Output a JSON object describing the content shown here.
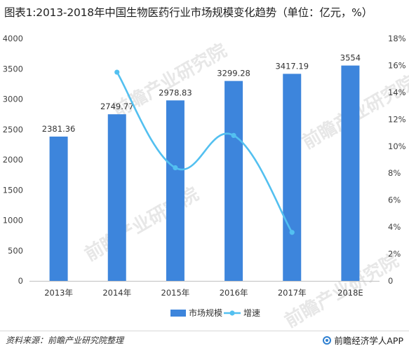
{
  "title": "图表1:2013-2018年中国生物医药行业市场规模变化趋势（单位：亿元，%）",
  "source": "资料来源：前瞻产业研究院整理",
  "brand": "前瞻经济学人APP",
  "watermark": "前瞻产业研究院",
  "colors": {
    "bar": "#3d85dc",
    "line": "#53c0f0"
  },
  "chart_data": {
    "type": "bar+line",
    "categories": [
      "2013年",
      "2014年",
      "2015年",
      "2016年",
      "2017年",
      "2018E"
    ],
    "series": [
      {
        "name": "市场规模",
        "type": "bar",
        "axis": "left",
        "values": [
          2381.36,
          2749.77,
          2978.83,
          3299.28,
          3417.19,
          3554
        ],
        "labels": [
          "2381.36",
          "2749.77",
          "2978.83",
          "3299.28",
          "3417.19",
          "3554"
        ]
      },
      {
        "name": "增速",
        "type": "line",
        "axis": "right",
        "values": [
          null,
          15.5,
          8.4,
          10.8,
          3.6,
          null
        ]
      }
    ],
    "y_left": {
      "min": 0,
      "max": 4000,
      "ticks": [
        "0",
        "500",
        "1000",
        "1500",
        "2000",
        "2500",
        "3000",
        "3500",
        "4000"
      ]
    },
    "y_right": {
      "min": 0,
      "max": 18,
      "ticks": [
        "0",
        "2%",
        "4%",
        "6%",
        "8%",
        "10%",
        "12%",
        "14%",
        "16%",
        "18%"
      ]
    },
    "legend": "bottom-center",
    "grid": false
  }
}
